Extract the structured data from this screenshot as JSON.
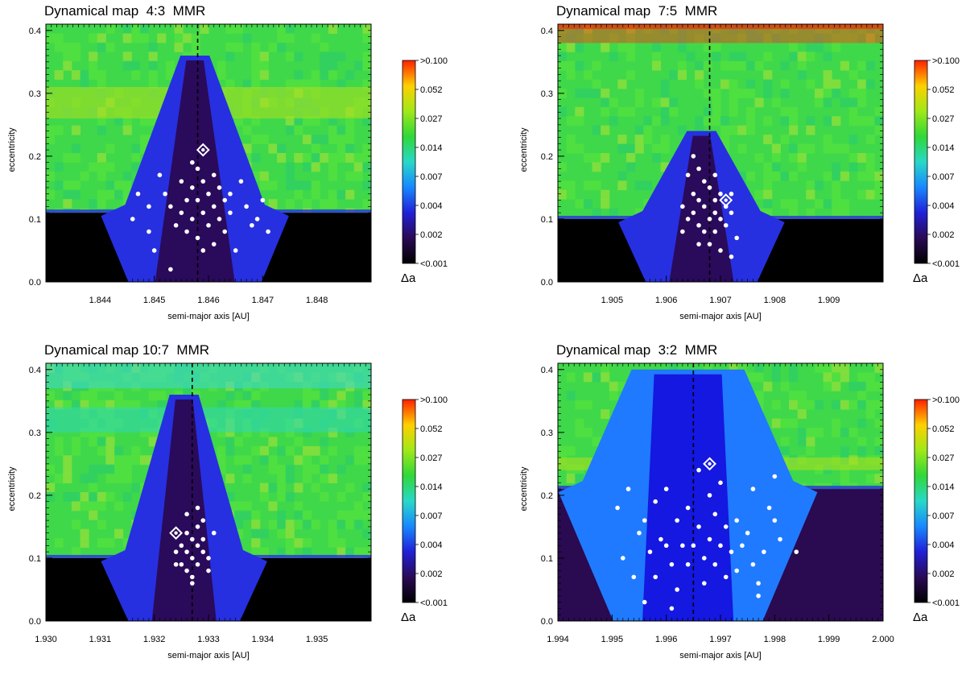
{
  "colorbar": {
    "labels": [
      ">0.100",
      "0.052",
      "0.027",
      "0.014",
      "0.007",
      "0.004",
      "0.002",
      "<0.001"
    ],
    "symbol": "Δa",
    "colors": [
      "#ff2000",
      "#ffd000",
      "#a0e818",
      "#30d838",
      "#28d8c8",
      "#1888ff",
      "#2020d8",
      "#2a0a55",
      "#000000"
    ]
  },
  "axis_labels": {
    "x": "semi-major axis [AU]",
    "y": "eccentricity"
  },
  "chart_data": [
    {
      "type": "heatmap",
      "title": "Dynamical map  4:3  MMR",
      "xlabel": "semi-major axis [AU]",
      "ylabel": "eccentricity",
      "xlim": [
        1.843,
        1.849
      ],
      "ylim": [
        0.0,
        0.41
      ],
      "xticks": [
        "1.844",
        "1.845",
        "1.846",
        "1.847",
        "1.848"
      ],
      "xtick_values": [
        1.844,
        1.845,
        1.846,
        1.847,
        1.848
      ],
      "yticks": [
        "0.0",
        "0.1",
        "0.2",
        "0.3",
        "0.4"
      ],
      "resonance_line_a": 1.8458,
      "nominal_object": {
        "a": 1.8459,
        "e": 0.21
      },
      "band_high_e": [
        0.26,
        0.31
      ],
      "low_e_threshold": 0.11,
      "resonance_width_e0": [
        1.8447,
        1.8468
      ],
      "resonance_top_e": 0.36,
      "points": [
        [
          1.8451,
          0.17
        ],
        [
          1.8452,
          0.14
        ],
        [
          1.8453,
          0.12
        ],
        [
          1.8454,
          0.09
        ],
        [
          1.8455,
          0.16
        ],
        [
          1.8455,
          0.11
        ],
        [
          1.8456,
          0.13
        ],
        [
          1.8456,
          0.08
        ],
        [
          1.8457,
          0.19
        ],
        [
          1.8457,
          0.15
        ],
        [
          1.8457,
          0.1
        ],
        [
          1.8458,
          0.07
        ],
        [
          1.8458,
          0.13
        ],
        [
          1.8458,
          0.18
        ],
        [
          1.8459,
          0.16
        ],
        [
          1.8459,
          0.11
        ],
        [
          1.8459,
          0.05
        ],
        [
          1.846,
          0.14
        ],
        [
          1.846,
          0.09
        ],
        [
          1.8461,
          0.17
        ],
        [
          1.8461,
          0.12
        ],
        [
          1.8461,
          0.06
        ],
        [
          1.8462,
          0.15
        ],
        [
          1.8462,
          0.1
        ],
        [
          1.8463,
          0.13
        ],
        [
          1.8463,
          0.08
        ],
        [
          1.8464,
          0.11
        ],
        [
          1.8464,
          0.14
        ],
        [
          1.8466,
          0.16
        ],
        [
          1.8467,
          0.12
        ],
        [
          1.8468,
          0.09
        ],
        [
          1.8469,
          0.1
        ],
        [
          1.847,
          0.13
        ],
        [
          1.8471,
          0.08
        ],
        [
          1.845,
          0.05
        ],
        [
          1.8453,
          0.02
        ],
        [
          1.8465,
          0.05
        ],
        [
          1.8446,
          0.1
        ],
        [
          1.8447,
          0.14
        ],
        [
          1.8449,
          0.12
        ],
        [
          1.8449,
          0.08
        ]
      ]
    },
    {
      "type": "heatmap",
      "title": "Dynamical map  7:5  MMR",
      "xlabel": "semi-major axis [AU]",
      "ylabel": "eccentricity",
      "xlim": [
        1.904,
        1.91
      ],
      "ylim": [
        0.0,
        0.41
      ],
      "xticks": [
        "1.905",
        "1.906",
        "1.907",
        "1.908",
        "1.909"
      ],
      "xtick_values": [
        1.905,
        1.906,
        1.907,
        1.908,
        1.909
      ],
      "yticks": [
        "0.0",
        "0.1",
        "0.2",
        "0.3",
        "0.4"
      ],
      "resonance_line_a": 1.9068,
      "nominal_object": {
        "a": 1.9071,
        "e": 0.13
      },
      "band_high_e": [
        0.38,
        0.41
      ],
      "low_e_threshold": 0.1,
      "resonance_width_e0": [
        1.9058,
        1.9075
      ],
      "resonance_top_e": 0.24,
      "points": [
        [
          1.9064,
          0.17
        ],
        [
          1.9065,
          0.14
        ],
        [
          1.9065,
          0.11
        ],
        [
          1.9066,
          0.09
        ],
        [
          1.9066,
          0.13
        ],
        [
          1.9067,
          0.16
        ],
        [
          1.9067,
          0.12
        ],
        [
          1.9067,
          0.08
        ],
        [
          1.9068,
          0.15
        ],
        [
          1.9068,
          0.1
        ],
        [
          1.9068,
          0.06
        ],
        [
          1.9069,
          0.13
        ],
        [
          1.9069,
          0.11
        ],
        [
          1.9069,
          0.08
        ],
        [
          1.907,
          0.14
        ],
        [
          1.907,
          0.1
        ],
        [
          1.9071,
          0.12
        ],
        [
          1.9071,
          0.09
        ],
        [
          1.9072,
          0.11
        ],
        [
          1.9072,
          0.14
        ],
        [
          1.9063,
          0.12
        ],
        [
          1.9063,
          0.08
        ],
        [
          1.9064,
          0.1
        ],
        [
          1.9066,
          0.18
        ],
        [
          1.9069,
          0.17
        ],
        [
          1.9073,
          0.07
        ],
        [
          1.9065,
          0.2
        ],
        [
          1.907,
          0.05
        ],
        [
          1.9066,
          0.06
        ],
        [
          1.9072,
          0.04
        ]
      ]
    },
    {
      "type": "heatmap",
      "title": "Dynamical map 10:7  MMR",
      "xlabel": "semi-major axis [AU]",
      "ylabel": "eccentricity",
      "xlim": [
        1.93,
        1.936
      ],
      "ylim": [
        0.0,
        0.41
      ],
      "xticks": [
        "1.930",
        "1.931",
        "1.932",
        "1.933",
        "1.934",
        "1.935"
      ],
      "xtick_values": [
        1.93,
        1.931,
        1.932,
        1.933,
        1.934,
        1.935
      ],
      "yticks": [
        "0.0",
        "0.1",
        "0.2",
        "0.3",
        "0.4"
      ],
      "resonance_line_a": 1.9327,
      "nominal_object": {
        "a": 1.9324,
        "e": 0.14
      },
      "band_high_e": [
        0.3,
        0.34
      ],
      "low_e_threshold": 0.1,
      "resonance_width_e0": [
        1.9317,
        1.9334
      ],
      "resonance_top_e": 0.36,
      "points": [
        [
          1.9325,
          0.12
        ],
        [
          1.9325,
          0.09
        ],
        [
          1.9326,
          0.14
        ],
        [
          1.9326,
          0.11
        ],
        [
          1.9326,
          0.08
        ],
        [
          1.9327,
          0.13
        ],
        [
          1.9327,
          0.1
        ],
        [
          1.9327,
          0.07
        ],
        [
          1.9328,
          0.15
        ],
        [
          1.9328,
          0.12
        ],
        [
          1.9328,
          0.09
        ],
        [
          1.9329,
          0.11
        ],
        [
          1.9329,
          0.13
        ],
        [
          1.9329,
          0.16
        ],
        [
          1.933,
          0.1
        ],
        [
          1.933,
          0.08
        ],
        [
          1.9331,
          0.14
        ],
        [
          1.9326,
          0.17
        ],
        [
          1.9328,
          0.18
        ],
        [
          1.9327,
          0.06
        ],
        [
          1.9324,
          0.11
        ],
        [
          1.9324,
          0.09
        ]
      ]
    },
    {
      "type": "heatmap",
      "title": "Dynamical map  3:2  MMR",
      "xlabel": "semi-major axis [AU]",
      "ylabel": "eccentricity",
      "xlim": [
        1.994,
        2.0
      ],
      "ylim": [
        0.0,
        0.41
      ],
      "xticks": [
        "1.994",
        "1.995",
        "1.996",
        "1.997",
        "1.998",
        "1.999",
        "2.000"
      ],
      "xtick_values": [
        1.994,
        1.995,
        1.996,
        1.997,
        1.998,
        1.999,
        2.0
      ],
      "yticks": [
        "0.0",
        "0.1",
        "0.2",
        "0.3",
        "0.4"
      ],
      "resonance_line_a": 1.9965,
      "nominal_object": {
        "a": 1.9968,
        "e": 0.25
      },
      "band_high_e": [
        0.24,
        0.26
      ],
      "low_e_threshold": 0.21,
      "resonance_width_e0": [
        1.9952,
        1.9976
      ],
      "resonance_top_e": 0.4,
      "points": [
        [
          1.9953,
          0.21
        ],
        [
          1.9951,
          0.18
        ],
        [
          1.9952,
          0.1
        ],
        [
          1.9954,
          0.07
        ],
        [
          1.9955,
          0.14
        ],
        [
          1.9956,
          0.16
        ],
        [
          1.9956,
          0.03
        ],
        [
          1.9957,
          0.11
        ],
        [
          1.9958,
          0.19
        ],
        [
          1.9958,
          0.07
        ],
        [
          1.9959,
          0.13
        ],
        [
          1.996,
          0.21
        ],
        [
          1.996,
          0.12
        ],
        [
          1.9961,
          0.09
        ],
        [
          1.9962,
          0.16
        ],
        [
          1.9962,
          0.05
        ],
        [
          1.9963,
          0.12
        ],
        [
          1.9964,
          0.18
        ],
        [
          1.9964,
          0.09
        ],
        [
          1.9965,
          0.12
        ],
        [
          1.9966,
          0.24
        ],
        [
          1.9966,
          0.15
        ],
        [
          1.9967,
          0.1
        ],
        [
          1.9967,
          0.06
        ],
        [
          1.9968,
          0.2
        ],
        [
          1.9968,
          0.13
        ],
        [
          1.9969,
          0.17
        ],
        [
          1.9969,
          0.09
        ],
        [
          1.997,
          0.22
        ],
        [
          1.997,
          0.12
        ],
        [
          1.9971,
          0.15
        ],
        [
          1.9971,
          0.07
        ],
        [
          1.9972,
          0.11
        ],
        [
          1.9973,
          0.16
        ],
        [
          1.9973,
          0.08
        ],
        [
          1.9974,
          0.12
        ],
        [
          1.9975,
          0.14
        ],
        [
          1.9976,
          0.21
        ],
        [
          1.9977,
          0.06
        ],
        [
          1.9978,
          0.11
        ],
        [
          1.9979,
          0.18
        ],
        [
          1.998,
          0.23
        ],
        [
          1.998,
          0.16
        ],
        [
          1.9981,
          0.13
        ],
        [
          1.9984,
          0.11
        ],
        [
          1.9977,
          0.04
        ],
        [
          1.9976,
          0.09
        ],
        [
          1.9961,
          0.02
        ]
      ]
    }
  ]
}
